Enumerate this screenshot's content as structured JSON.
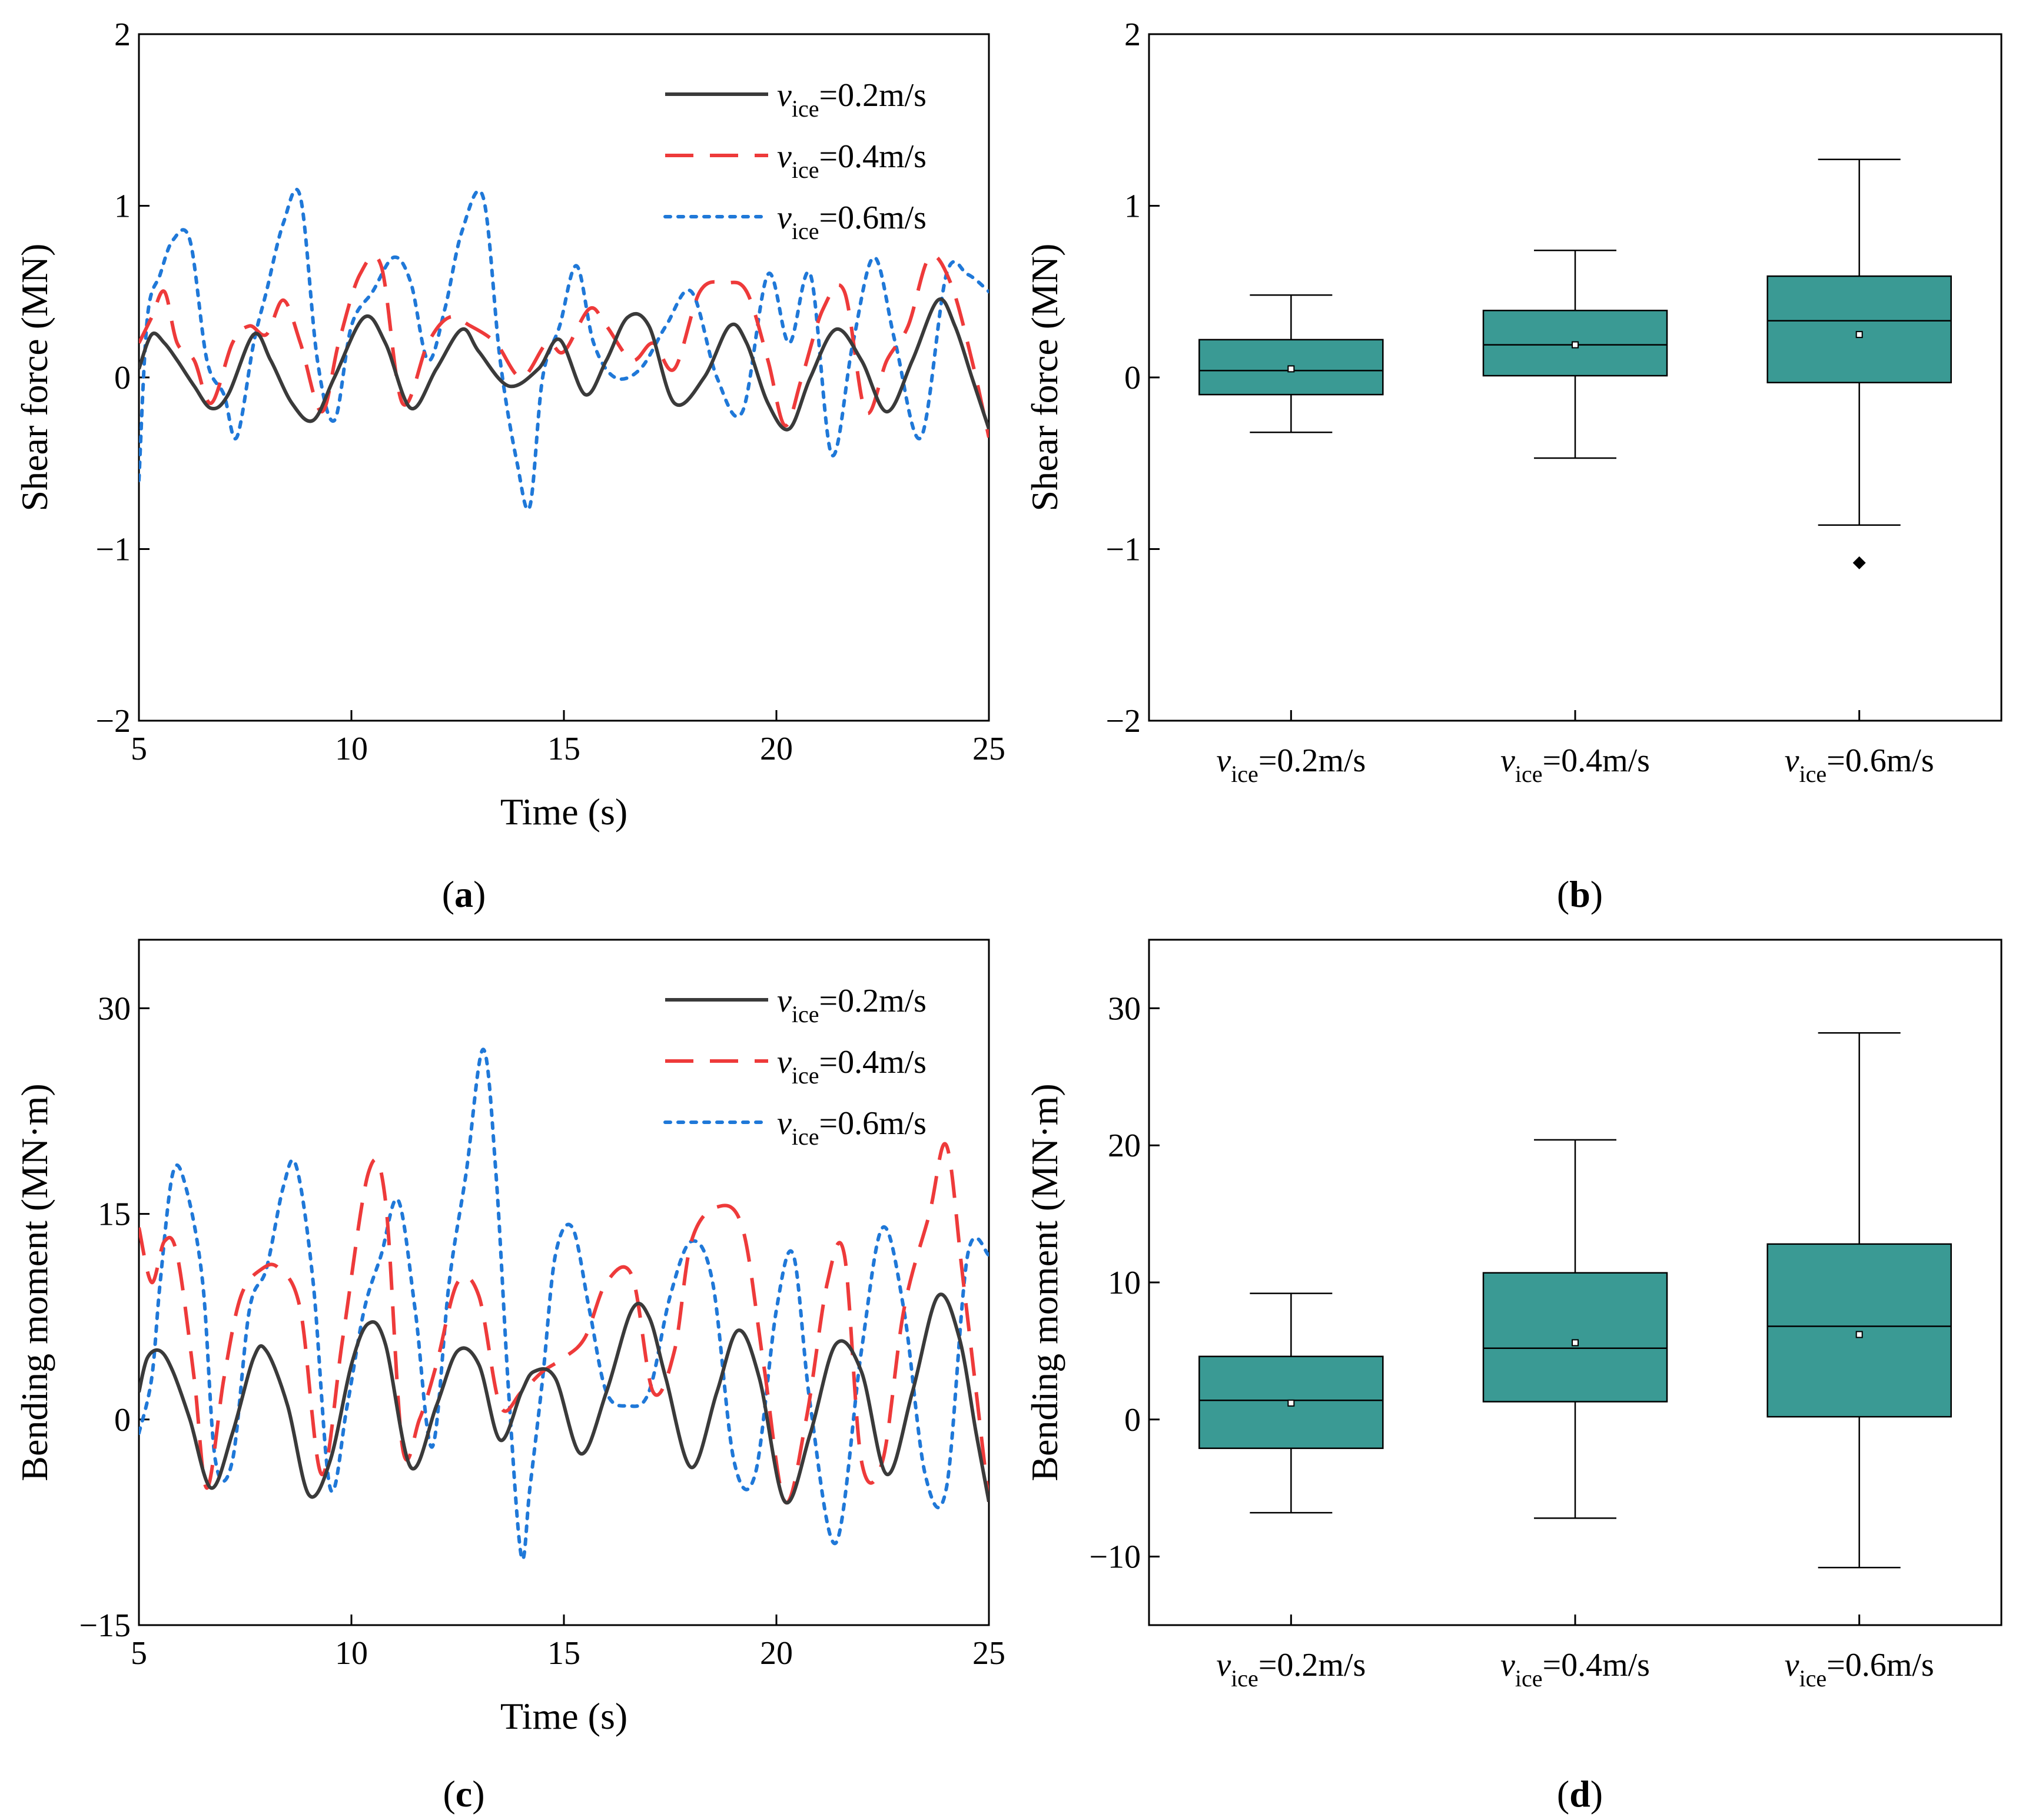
{
  "chart_data": [
    {
      "panel": "a",
      "type": "line",
      "caption_letter": "a",
      "xlabel": "Time (s)",
      "ylabel": "Shear force (MN)",
      "xlim": [
        5,
        25
      ],
      "ylim": [
        -2,
        2
      ],
      "xticks": [
        "5",
        "10",
        "15",
        "20",
        "25"
      ],
      "yticks": [
        "−2",
        "−1",
        "0",
        "1",
        "2"
      ],
      "legend_position": "top-right",
      "series": [
        {
          "var": "v",
          "sub": "ice",
          "eq": "=0.2m/s",
          "color": "#3a3a3a",
          "dash": "solid",
          "x": [
            5.0,
            5.3,
            5.6,
            5.9,
            6.3,
            6.7,
            7.1,
            7.7,
            8.1,
            8.6,
            9.1,
            9.6,
            10.3,
            10.8,
            11.4,
            12.0,
            12.6,
            13.0,
            13.7,
            14.4,
            14.9,
            15.5,
            16.0,
            16.5,
            17.0,
            17.6,
            18.3,
            18.9,
            19.3,
            19.8,
            20.3,
            20.8,
            21.4,
            22.0,
            22.6,
            23.2,
            23.8,
            24.2,
            24.6,
            25.0
          ],
          "y": [
            0.05,
            0.25,
            0.2,
            0.1,
            -0.05,
            -0.18,
            -0.1,
            0.25,
            0.1,
            -0.15,
            -0.25,
            0.0,
            0.35,
            0.2,
            -0.18,
            0.05,
            0.28,
            0.15,
            -0.05,
            0.05,
            0.22,
            -0.1,
            0.1,
            0.35,
            0.3,
            -0.15,
            0.0,
            0.3,
            0.2,
            -0.15,
            -0.3,
            0.0,
            0.28,
            0.1,
            -0.2,
            0.1,
            0.45,
            0.3,
            0.0,
            -0.3
          ]
        },
        {
          "var": "v",
          "sub": "ice",
          "eq": "=0.4m/s",
          "color": "#ee3a3a",
          "dash": "long",
          "x": [
            5.0,
            5.3,
            5.6,
            5.9,
            6.3,
            6.7,
            7.2,
            7.6,
            8.0,
            8.4,
            8.8,
            9.3,
            9.7,
            10.2,
            10.7,
            11.2,
            11.8,
            12.3,
            12.8,
            13.4,
            14.0,
            14.6,
            15.0,
            15.6,
            16.0,
            16.6,
            17.1,
            17.6,
            18.2,
            18.8,
            19.3,
            19.8,
            20.2,
            20.6,
            21.1,
            21.6,
            22.1,
            22.6,
            23.1,
            23.6,
            24.1,
            24.6,
            25.0
          ],
          "y": [
            0.2,
            0.35,
            0.5,
            0.2,
            0.1,
            -0.15,
            0.2,
            0.3,
            0.25,
            0.45,
            0.2,
            -0.2,
            0.2,
            0.6,
            0.65,
            -0.15,
            0.2,
            0.35,
            0.3,
            0.2,
            0.0,
            0.2,
            0.15,
            0.4,
            0.3,
            0.1,
            0.2,
            0.05,
            0.5,
            0.55,
            0.5,
            0.1,
            -0.28,
            0.0,
            0.4,
            0.5,
            -0.2,
            0.1,
            0.3,
            0.7,
            0.55,
            0.1,
            -0.35
          ]
        },
        {
          "var": "v",
          "sub": "ice",
          "eq": "=0.6m/s",
          "color": "#1f78d8",
          "dash": "dot",
          "x": [
            5.0,
            5.2,
            5.5,
            5.8,
            6.2,
            6.6,
            7.0,
            7.3,
            7.7,
            8.0,
            8.4,
            8.8,
            9.2,
            9.6,
            10.0,
            10.5,
            11.0,
            11.4,
            11.8,
            12.2,
            12.6,
            13.1,
            13.5,
            13.9,
            14.2,
            14.5,
            14.9,
            15.3,
            15.7,
            16.2,
            16.8,
            17.4,
            18.0,
            18.6,
            19.2,
            19.8,
            20.3,
            20.8,
            21.3,
            21.8,
            22.3,
            22.8,
            23.4,
            24.0,
            24.5,
            25.0
          ],
          "y": [
            -0.6,
            0.35,
            0.6,
            0.8,
            0.8,
            0.1,
            -0.1,
            -0.35,
            0.2,
            0.5,
            0.9,
            1.05,
            0.1,
            -0.25,
            0.3,
            0.5,
            0.7,
            0.55,
            0.1,
            0.4,
            0.85,
            1.05,
            0.1,
            -0.5,
            -0.75,
            0.0,
            0.3,
            0.65,
            0.2,
            0.0,
            0.05,
            0.3,
            0.5,
            0.0,
            -0.2,
            0.6,
            0.2,
            0.6,
            -0.45,
            0.2,
            0.7,
            0.2,
            -0.35,
            0.6,
            0.6,
            0.5
          ]
        }
      ]
    },
    {
      "panel": "b",
      "type": "box",
      "caption_letter": "b",
      "ylabel": "Shear force (MN)",
      "ylim": [
        -2,
        2
      ],
      "yticks": [
        "−2",
        "−1",
        "0",
        "1",
        "2"
      ],
      "box_color": "#3a9a94",
      "categories": [
        {
          "var": "v",
          "sub": "ice",
          "eq": "=0.2m/s"
        },
        {
          "var": "v",
          "sub": "ice",
          "eq": "=0.4m/s"
        },
        {
          "var": "v",
          "sub": "ice",
          "eq": "=0.6m/s"
        }
      ],
      "boxes": [
        {
          "whisker_low": -0.32,
          "q1": -0.1,
          "median": 0.04,
          "mean": 0.05,
          "q3": 0.22,
          "whisker_high": 0.48,
          "outliers": []
        },
        {
          "whisker_low": -0.47,
          "q1": 0.01,
          "median": 0.19,
          "mean": 0.19,
          "q3": 0.39,
          "whisker_high": 0.74,
          "outliers": []
        },
        {
          "whisker_low": -0.86,
          "q1": -0.03,
          "median": 0.33,
          "mean": 0.25,
          "q3": 0.59,
          "whisker_high": 1.27,
          "outliers": [
            -1.08
          ]
        }
      ]
    },
    {
      "panel": "c",
      "type": "line",
      "caption_letter": "c",
      "xlabel": "Time (s)",
      "ylabel": "Bending moment (MN·m)",
      "xlim": [
        5,
        25
      ],
      "ylim": [
        -15,
        35
      ],
      "xticks": [
        "5",
        "10",
        "15",
        "20",
        "25"
      ],
      "yticks": [
        "−15",
        "0",
        "15",
        "30"
      ],
      "legend_position": "top-right",
      "series": [
        {
          "var": "v",
          "sub": "ice",
          "eq": "=0.2m/s",
          "color": "#3a3a3a",
          "dash": "solid",
          "x": [
            5.0,
            5.2,
            5.5,
            5.8,
            6.2,
            6.7,
            7.2,
            7.7,
            8.0,
            8.5,
            9.0,
            9.5,
            10.0,
            10.4,
            10.8,
            11.4,
            12.0,
            12.5,
            13.0,
            13.5,
            14.0,
            14.3,
            14.8,
            15.4,
            16.0,
            16.6,
            17.0,
            17.4,
            18.0,
            18.6,
            19.1,
            19.6,
            20.2,
            20.8,
            21.4,
            22.0,
            22.6,
            23.2,
            23.8,
            24.3,
            24.7,
            25.0
          ],
          "y": [
            2.0,
            4.5,
            5.0,
            3.5,
            0.0,
            -5.0,
            -1.0,
            4.5,
            5.0,
            1.0,
            -5.5,
            -3.0,
            4.0,
            7.0,
            5.5,
            -3.5,
            1.0,
            5.0,
            4.0,
            -1.5,
            2.0,
            3.5,
            3.0,
            -2.5,
            2.0,
            8.0,
            7.5,
            3.0,
            -3.5,
            2.0,
            6.5,
            3.0,
            -6.0,
            -1.0,
            5.5,
            3.5,
            -4.0,
            2.0,
            9.0,
            6.0,
            -1.0,
            -6.0
          ]
        },
        {
          "var": "v",
          "sub": "ice",
          "eq": "=0.4m/s",
          "color": "#ee3a3a",
          "dash": "long",
          "x": [
            5.0,
            5.3,
            5.6,
            5.9,
            6.3,
            6.6,
            7.0,
            7.4,
            7.9,
            8.3,
            8.8,
            9.3,
            9.8,
            10.4,
            10.8,
            11.2,
            11.6,
            12.0,
            12.5,
            13.0,
            13.5,
            14.0,
            14.5,
            15.0,
            15.5,
            16.0,
            16.6,
            17.1,
            17.6,
            18.0,
            18.6,
            19.2,
            19.7,
            20.2,
            20.7,
            21.2,
            21.6,
            22.0,
            22.5,
            23.0,
            23.6,
            24.0,
            24.4,
            25.0
          ],
          "y": [
            14.0,
            10.0,
            13.0,
            12.0,
            3.0,
            -5.0,
            3.0,
            9.0,
            11.0,
            11.0,
            8.0,
            -4.0,
            6.0,
            18.0,
            16.0,
            -2.0,
            0.0,
            4.0,
            10.0,
            9.0,
            1.0,
            2.0,
            3.5,
            4.5,
            6.0,
            10.0,
            10.5,
            2.0,
            5.0,
            13.0,
            15.5,
            14.0,
            4.0,
            -6.0,
            0.0,
            10.0,
            12.0,
            -3.0,
            -3.0,
            8.0,
            15.0,
            20.0,
            10.0,
            -6.0
          ]
        },
        {
          "var": "v",
          "sub": "ice",
          "eq": "=0.6m/s",
          "color": "#1f78d8",
          "dash": "dot",
          "x": [
            5.0,
            5.3,
            5.5,
            5.8,
            6.1,
            6.5,
            6.8,
            7.2,
            7.6,
            8.0,
            8.4,
            8.7,
            9.1,
            9.5,
            9.9,
            10.3,
            10.7,
            11.1,
            11.5,
            11.9,
            12.3,
            12.7,
            13.1,
            13.4,
            13.7,
            14.0,
            14.2,
            14.5,
            14.8,
            15.2,
            15.6,
            16.0,
            16.5,
            17.0,
            17.5,
            18.0,
            18.5,
            19.0,
            19.5,
            20.0,
            20.4,
            20.8,
            21.4,
            22.0,
            22.5,
            23.0,
            23.5,
            24.0,
            24.5,
            25.0
          ],
          "y": [
            -1.0,
            3.0,
            10.0,
            18.0,
            17.0,
            10.0,
            -3.0,
            -3.0,
            8.0,
            11.0,
            17.0,
            18.5,
            10.0,
            -5.0,
            1.0,
            8.0,
            12.0,
            16.0,
            8.0,
            -2.0,
            10.0,
            18.0,
            27.0,
            18.0,
            2.0,
            -10.0,
            -5.0,
            3.0,
            12.0,
            14.0,
            8.0,
            2.0,
            1.0,
            2.0,
            9.0,
            13.0,
            10.0,
            -3.0,
            -4.0,
            8.0,
            12.0,
            1.0,
            -9.0,
            5.0,
            14.0,
            8.0,
            -4.0,
            -5.0,
            12.0,
            12.0
          ]
        }
      ]
    },
    {
      "panel": "d",
      "type": "box",
      "caption_letter": "d",
      "ylabel": "Bending moment (MN·m)",
      "ylim": [
        -15,
        35
      ],
      "yticks": [
        "−10",
        "0",
        "10",
        "20",
        "30"
      ],
      "box_color": "#3a9a94",
      "categories": [
        {
          "var": "v",
          "sub": "ice",
          "eq": "=0.2m/s"
        },
        {
          "var": "v",
          "sub": "ice",
          "eq": "=0.4m/s"
        },
        {
          "var": "v",
          "sub": "ice",
          "eq": "=0.6m/s"
        }
      ],
      "boxes": [
        {
          "whisker_low": -6.8,
          "q1": -2.1,
          "median": 1.4,
          "mean": 1.2,
          "q3": 4.6,
          "whisker_high": 9.2,
          "outliers": []
        },
        {
          "whisker_low": -7.2,
          "q1": 1.3,
          "median": 5.2,
          "mean": 5.6,
          "q3": 10.7,
          "whisker_high": 20.4,
          "outliers": []
        },
        {
          "whisker_low": -10.8,
          "q1": 0.2,
          "median": 6.8,
          "mean": 6.2,
          "q3": 12.8,
          "whisker_high": 28.2,
          "outliers": []
        }
      ]
    }
  ]
}
